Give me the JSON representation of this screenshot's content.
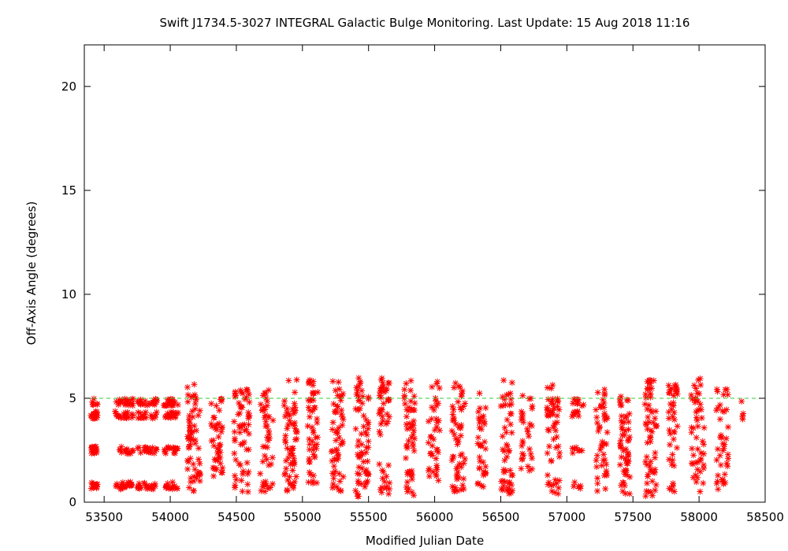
{
  "chart_data": {
    "type": "scatter",
    "title": "Swift J1734.5-3027   INTEGRAL Galactic Bulge Monitoring.  Last Update: 15 Aug 2018 11:16",
    "xlabel": "Modified Julian Date",
    "ylabel": "Off-Axis Angle (degrees)",
    "xlim": [
      53350,
      58500
    ],
    "ylim": [
      0,
      22
    ],
    "xticks": [
      "53500",
      "54000",
      "54500",
      "55000",
      "55500",
      "56000",
      "56500",
      "57000",
      "57500",
      "58000",
      "58500"
    ],
    "yticks": [
      "0",
      "5",
      "10",
      "15",
      "20"
    ],
    "grid": false,
    "reference_line": {
      "y": 5,
      "color": "#33cc33",
      "style": "dashed"
    },
    "marker": {
      "symbol": "asterisk",
      "color": "#ff0000"
    },
    "observation_windows": [
      {
        "x_range": [
          53400,
          53450
        ],
        "level_rows": [
          0.8,
          2.5,
          4.2,
          4.8
        ],
        "count": 60
      },
      {
        "x_range": [
          53580,
          53720
        ],
        "level_rows": [
          0.8,
          2.5,
          4.2,
          4.8
        ],
        "count": 80
      },
      {
        "x_range": [
          53750,
          53900
        ],
        "level_rows": [
          0.8,
          2.5,
          4.2,
          4.8
        ],
        "count": 80
      },
      {
        "x_range": [
          53950,
          54060
        ],
        "level_rows": [
          0.8,
          2.5,
          4.2,
          4.8
        ],
        "count": 70
      },
      {
        "x_range": [
          54130,
          54230
        ],
        "y_range": [
          0.5,
          5.9
        ],
        "count": 60
      },
      {
        "x_range": [
          54310,
          54400
        ],
        "y_range": [
          1.2,
          5.0
        ],
        "count": 45
      },
      {
        "x_range": [
          54480,
          54600
        ],
        "y_range": [
          0.3,
          5.5
        ],
        "count": 60
      },
      {
        "x_range": [
          54680,
          54780
        ],
        "y_range": [
          0.5,
          5.5
        ],
        "count": 45
      },
      {
        "x_range": [
          54860,
          54960
        ],
        "y_range": [
          0.5,
          6.0
        ],
        "count": 60
      },
      {
        "x_range": [
          55040,
          55120
        ],
        "y_range": [
          0.8,
          5.9
        ],
        "count": 50
      },
      {
        "x_range": [
          55220,
          55310
        ],
        "y_range": [
          0.4,
          5.9
        ],
        "count": 55
      },
      {
        "x_range": [
          55400,
          55500
        ],
        "y_range": [
          0.2,
          6.0
        ],
        "count": 65
      },
      {
        "x_range": [
          55580,
          55660
        ],
        "y_range": [
          0.3,
          6.0
        ],
        "count": 50
      },
      {
        "x_range": [
          55770,
          55850
        ],
        "y_range": [
          0.3,
          5.9
        ],
        "count": 50
      },
      {
        "x_range": [
          55950,
          56040
        ],
        "y_range": [
          0.9,
          6.0
        ],
        "count": 40
      },
      {
        "x_range": [
          56130,
          56230
        ],
        "y_range": [
          0.5,
          5.9
        ],
        "count": 55
      },
      {
        "x_range": [
          56320,
          56390
        ],
        "y_range": [
          0.5,
          5.3
        ],
        "count": 35
      },
      {
        "x_range": [
          56500,
          56590
        ],
        "y_range": [
          0.3,
          6.0
        ],
        "count": 50
      },
      {
        "x_range": [
          56650,
          56740
        ],
        "y_range": [
          1.5,
          5.2
        ],
        "count": 30
      },
      {
        "x_range": [
          56850,
          56950
        ],
        "y_range": [
          0.3,
          5.9
        ],
        "count": 55
      },
      {
        "x_range": [
          57040,
          57130
        ],
        "level_rows": [
          0.8,
          2.5,
          4.2,
          4.8
        ],
        "count": 30
      },
      {
        "x_range": [
          57220,
          57310
        ],
        "y_range": [
          0.5,
          5.5
        ],
        "count": 45
      },
      {
        "x_range": [
          57400,
          57480
        ],
        "y_range": [
          0.3,
          5.2
        ],
        "count": 55
      },
      {
        "x_range": [
          57590,
          57680
        ],
        "y_range": [
          0.2,
          5.9
        ],
        "count": 60
      },
      {
        "x_range": [
          57770,
          57840
        ],
        "y_range": [
          0.5,
          5.9
        ],
        "count": 40
      },
      {
        "x_range": [
          57940,
          58040
        ],
        "y_range": [
          0.5,
          6.0
        ],
        "count": 50
      },
      {
        "x_range": [
          58130,
          58220
        ],
        "y_range": [
          0.1,
          5.5
        ],
        "count": 40
      },
      {
        "x_range": [
          58320,
          58340
        ],
        "y_range": [
          3.5,
          4.9
        ],
        "count": 4
      }
    ]
  }
}
